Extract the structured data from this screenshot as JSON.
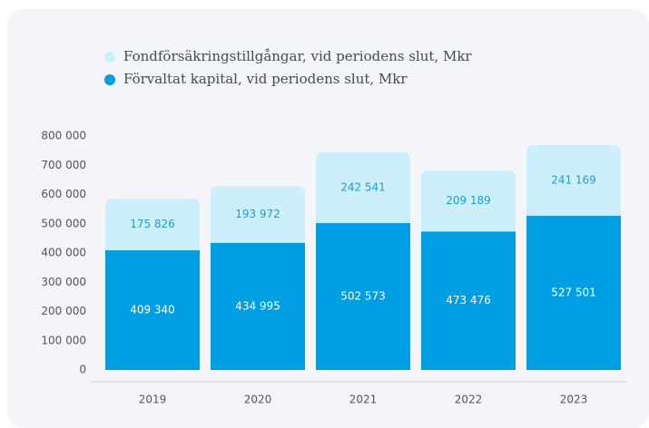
{
  "chart_data": {
    "type": "stacked_bar",
    "categories": [
      "2019",
      "2020",
      "2021",
      "2022",
      "2023"
    ],
    "series": [
      {
        "name": "Förvaltat kapital, vid periodens slut, Mkr",
        "color": "#009fe3",
        "values": [
          409340,
          434995,
          502573,
          473476,
          527501
        ],
        "value_labels": [
          "409 340",
          "434 995",
          "502 573",
          "473 476",
          "527 501"
        ]
      },
      {
        "name": "Fondförsäkringstillgångar, vid periodens slut, Mkr",
        "color": "#cdeefb",
        "values": [
          175826,
          193972,
          242541,
          209189,
          241169
        ],
        "value_labels": [
          "175 826",
          "193 972",
          "242 541",
          "209 189",
          "241 169"
        ]
      }
    ],
    "ylim": [
      0,
      800000
    ],
    "yticks": [
      0,
      {
        "value": 100000,
        "label": "100 000"
      },
      {
        "value": 200000,
        "label": "200 000"
      },
      {
        "value": 300000,
        "label": "300 000"
      },
      {
        "value": 400000,
        "label": "400 000"
      },
      {
        "value": 500000,
        "label": "500 000"
      },
      {
        "value": 600000,
        "label": "600 000"
      },
      {
        "value": 700000,
        "label": "700 000"
      },
      {
        "value": 800000,
        "label": "800 000"
      }
    ],
    "grid": false
  }
}
